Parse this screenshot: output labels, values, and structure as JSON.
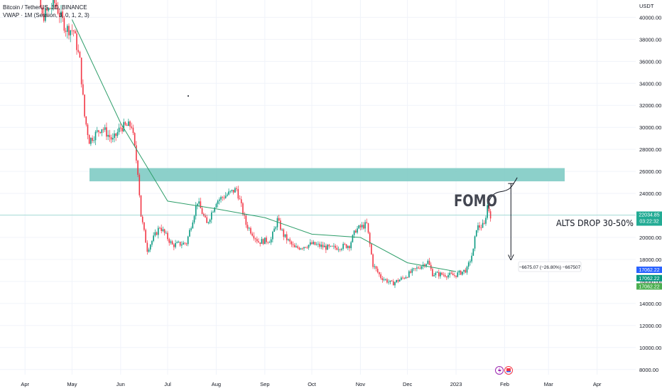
{
  "header": {
    "symbol": "Bitcoin / TetherUS, 1D, BINANCE",
    "indicator": "VWAP · 1M (Session, 3, 0, 1, 2, 3)"
  },
  "price_axis": {
    "currency": "USDT",
    "ticks": [
      "40000.00",
      "38000.00",
      "36000.00",
      "34000.00",
      "32000.00",
      "30000.00",
      "28000.00",
      "26000.00",
      "24000.00",
      "22000.00",
      "20000.00",
      "18000.00",
      "16000.00",
      "14000.00",
      "12000.00",
      "10000.00",
      "8000.00"
    ]
  },
  "time_axis": {
    "ticks": [
      "Apr",
      "May",
      "Jun",
      "Jul",
      "Aug",
      "Sep",
      "Oct",
      "Nov",
      "Dec",
      "2023",
      "Feb",
      "Mar",
      "Apr"
    ]
  },
  "price_labels": [
    {
      "text": "22034.85",
      "sub": "03:22:32",
      "color": "#22ab94",
      "price": 22034.85
    },
    {
      "text": "17062.22",
      "color": "#2962ff",
      "price": 17062.22
    },
    {
      "text": "17062.22",
      "color": "#089981",
      "price": 16300
    },
    {
      "text": "17062.22",
      "color": "#4caf50",
      "price": 15550
    }
  ],
  "annotations": {
    "fomo": "FOMO",
    "alts": "ALTS DROP 30-50%",
    "measure": "−6675.07 (−26.80%) −667507"
  },
  "chart_data": {
    "type": "candlestick",
    "title": "Bitcoin / TetherUS, 1D, BINANCE",
    "ylabel": "USDT",
    "ylim": [
      7000,
      41500
    ],
    "zone": {
      "from": 25100,
      "to": 26300,
      "color": "#80cbc4"
    },
    "current_price": 22034.85,
    "close_path": [
      {
        "date": "2022-03-30",
        "close": 47000
      },
      {
        "date": "2022-04-05",
        "close": 46000
      },
      {
        "date": "2022-04-12",
        "close": 40000
      },
      {
        "date": "2022-04-20",
        "close": 41300
      },
      {
        "date": "2022-04-27",
        "close": 39000
      },
      {
        "date": "2022-05-02",
        "close": 38800
      },
      {
        "date": "2022-05-06",
        "close": 36000
      },
      {
        "date": "2022-05-09",
        "close": 31000
      },
      {
        "date": "2022-05-12",
        "close": 28800
      },
      {
        "date": "2022-05-20",
        "close": 30000
      },
      {
        "date": "2022-05-27",
        "close": 28800
      },
      {
        "date": "2022-06-01",
        "close": 30000
      },
      {
        "date": "2022-06-08",
        "close": 30200
      },
      {
        "date": "2022-06-12",
        "close": 26000
      },
      {
        "date": "2022-06-14",
        "close": 22000
      },
      {
        "date": "2022-06-18",
        "close": 18900
      },
      {
        "date": "2022-06-26",
        "close": 21000
      },
      {
        "date": "2022-07-04",
        "close": 19300
      },
      {
        "date": "2022-07-13",
        "close": 19500
      },
      {
        "date": "2022-07-20",
        "close": 23300
      },
      {
        "date": "2022-07-26",
        "close": 21200
      },
      {
        "date": "2022-08-01",
        "close": 23300
      },
      {
        "date": "2022-08-08",
        "close": 23900
      },
      {
        "date": "2022-08-14",
        "close": 24400
      },
      {
        "date": "2022-08-20",
        "close": 21200
      },
      {
        "date": "2022-08-28",
        "close": 19600
      },
      {
        "date": "2022-09-05",
        "close": 19800
      },
      {
        "date": "2022-09-09",
        "close": 21600
      },
      {
        "date": "2022-09-13",
        "close": 20200
      },
      {
        "date": "2022-09-20",
        "close": 19000
      },
      {
        "date": "2022-10-01",
        "close": 19400
      },
      {
        "date": "2022-10-13",
        "close": 19000
      },
      {
        "date": "2022-10-25",
        "close": 19300
      },
      {
        "date": "2022-10-29",
        "close": 20700
      },
      {
        "date": "2022-11-05",
        "close": 21200
      },
      {
        "date": "2022-11-09",
        "close": 17500
      },
      {
        "date": "2022-11-14",
        "close": 16400
      },
      {
        "date": "2022-11-21",
        "close": 15800
      },
      {
        "date": "2022-11-28",
        "close": 16300
      },
      {
        "date": "2022-12-05",
        "close": 17000
      },
      {
        "date": "2022-12-14",
        "close": 17800
      },
      {
        "date": "2022-12-17",
        "close": 16700
      },
      {
        "date": "2022-12-31",
        "close": 16550
      },
      {
        "date": "2023-01-08",
        "close": 17100
      },
      {
        "date": "2023-01-12",
        "close": 18800
      },
      {
        "date": "2023-01-14",
        "close": 20900
      },
      {
        "date": "2023-01-19",
        "close": 21100
      },
      {
        "date": "2023-01-21",
        "close": 22900
      },
      {
        "date": "2023-01-23",
        "close": 22034.85
      }
    ],
    "vwap_path": [
      {
        "date": "2022-05-01",
        "value": 39800
      },
      {
        "date": "2022-06-01",
        "value": 30400
      },
      {
        "date": "2022-07-01",
        "value": 23300
      },
      {
        "date": "2022-08-01",
        "value": 22600
      },
      {
        "date": "2022-09-01",
        "value": 21800
      },
      {
        "date": "2022-10-01",
        "value": 20300
      },
      {
        "date": "2022-11-01",
        "value": 20000
      },
      {
        "date": "2022-12-01",
        "value": 17700
      },
      {
        "date": "2023-01-01",
        "value": 16900
      }
    ],
    "measure": {
      "from_date": "2023-02-05",
      "from_price": 24900,
      "to_price": 18200,
      "text": "−6675.07 (−26.80%) −667507"
    }
  }
}
